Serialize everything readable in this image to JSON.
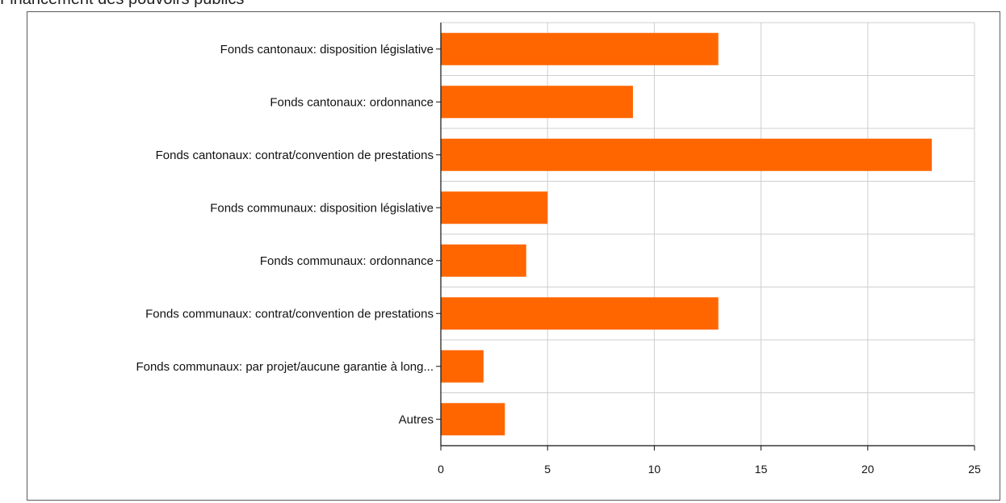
{
  "page": {
    "heading": "Financement des pouvoirs publics"
  },
  "chart_data": {
    "type": "bar",
    "orientation": "horizontal",
    "title": "",
    "xlabel": "",
    "ylabel": "",
    "categories": [
      "Fonds cantonaux: disposition législative",
      "Fonds cantonaux: ordonnance",
      "Fonds cantonaux: contrat/convention de prestations",
      "Fonds communaux: disposition législative",
      "Fonds communaux: ordonnance",
      "Fonds communaux: contrat/convention de prestations",
      "Fonds communaux: par projet/aucune garantie à long...",
      "Autres"
    ],
    "values": [
      13,
      9,
      23,
      5,
      4,
      13,
      2,
      3
    ],
    "xlim": [
      0,
      25
    ],
    "xticks": [
      0,
      5,
      10,
      15,
      20,
      25
    ],
    "grid": true,
    "bar_color": "#ff6600",
    "grid_color": "#cfcfcf"
  }
}
